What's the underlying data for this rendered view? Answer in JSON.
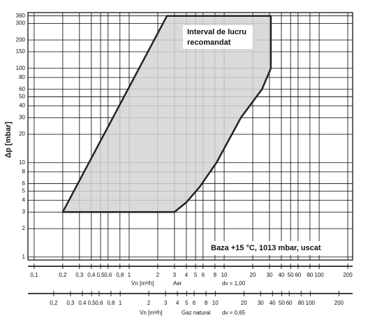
{
  "chart_data": {
    "type": "area",
    "ylabel": "Δp [mbar]",
    "annotation": [
      "Interval de lucru",
      "recomandat"
    ],
    "note": "Baza  +15 °C, 1013 mbar, uscat",
    "log_x": true,
    "log_y": true,
    "grid": true,
    "color": "#d3d3d3",
    "region": {
      "x": [
        0.2,
        2.5,
        31,
        31,
        25,
        15,
        8.3,
        5.5,
        4,
        3,
        0.2
      ],
      "y": [
        3,
        360,
        360,
        100,
        60,
        30,
        10,
        5.5,
        3.8,
        3,
        3
      ]
    },
    "xlim": [
      0.086,
      225
    ],
    "ylim": [
      0.93,
      390
    ],
    "yticks": [
      1,
      2,
      3,
      4,
      5,
      6,
      8,
      10,
      20,
      30,
      40,
      50,
      60,
      80,
      100,
      150,
      200,
      300,
      360
    ],
    "xticks": [
      {
        "value": 0.1,
        "label": "0,1"
      },
      {
        "value": 0.2,
        "label": "0,2"
      },
      {
        "value": 0.3,
        "label": "0,3"
      },
      {
        "value": 0.4,
        "label": "0,4"
      },
      {
        "value": 0.5,
        "label": "0,5"
      },
      {
        "value": 0.6,
        "label": "0,6"
      },
      {
        "value": 0.8,
        "label": "0,8"
      },
      1,
      2,
      3,
      4,
      5,
      6,
      8,
      10,
      20,
      30,
      40,
      50,
      60,
      80,
      100,
      200
    ],
    "xlabel": "V̇n [m³/h]",
    "xmedium": "Aer",
    "xdv": "dv = 1,00",
    "x2lim": [
      0.107,
      279
    ],
    "x2ticks": [
      {
        "value": 0.2,
        "label": "0,2"
      },
      {
        "value": 0.3,
        "label": "0,3"
      },
      {
        "value": 0.4,
        "label": "0,4"
      },
      {
        "value": 0.5,
        "label": "0,5"
      },
      {
        "value": 0.6,
        "label": "0,6"
      },
      {
        "value": 0.8,
        "label": "0,8"
      },
      1,
      2,
      3,
      4,
      5,
      6,
      8,
      10,
      20,
      30,
      40,
      50,
      60,
      80,
      100,
      200
    ],
    "x2label": "V̇n [m³/h]",
    "x2medium": "Gaz natural",
    "x2dv": "dv = 0,65"
  }
}
